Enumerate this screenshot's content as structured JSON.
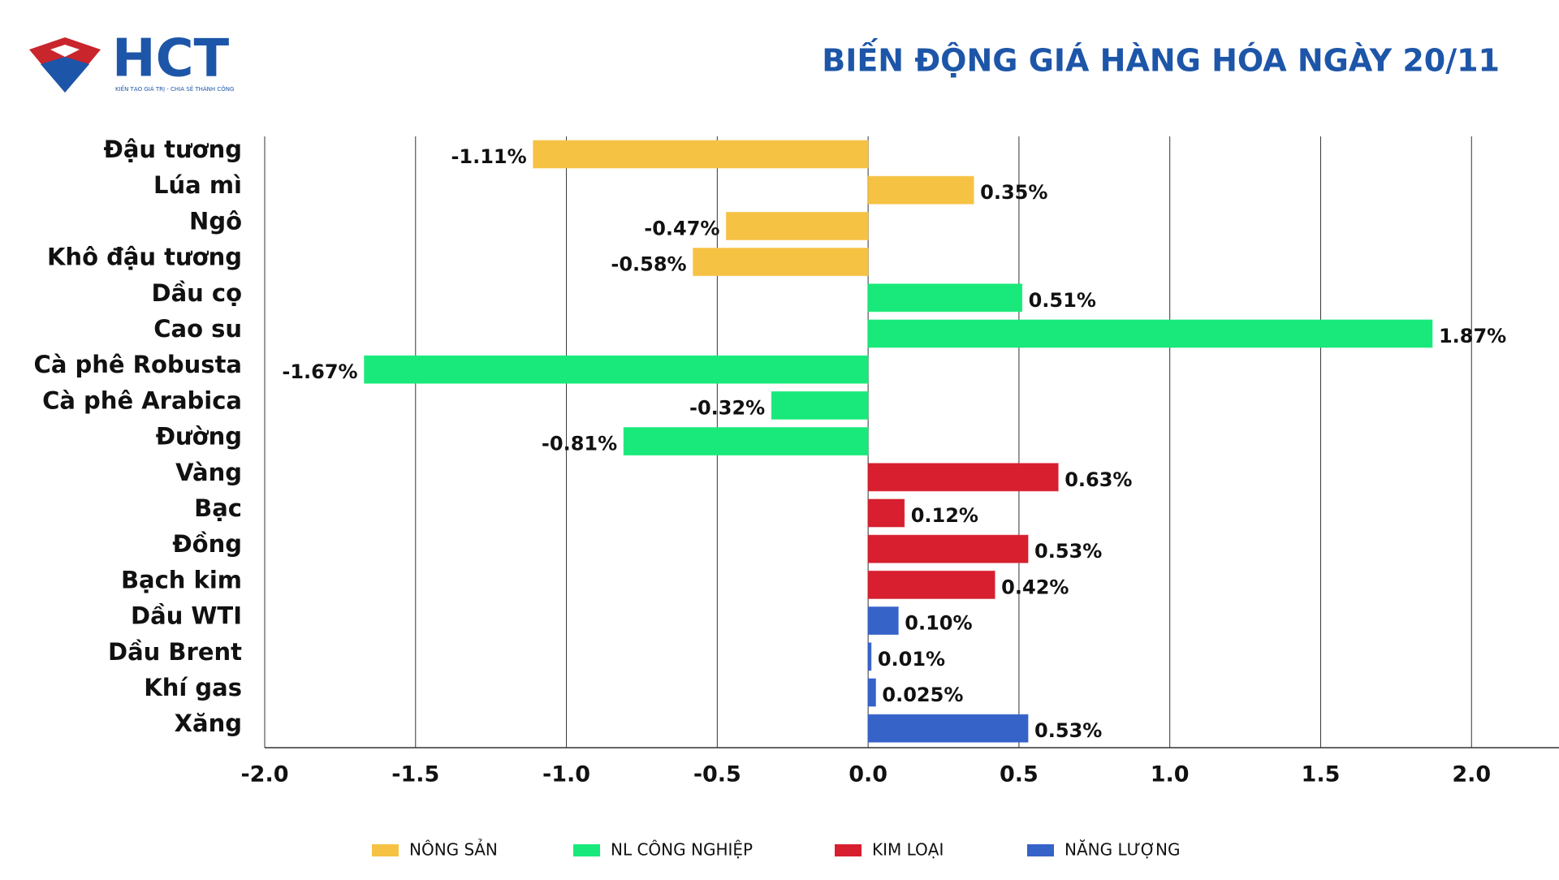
{
  "logo": {
    "text": "HCT",
    "tagline": "KIẾN TẠO GIÁ TRỊ - CHIA SẺ THÀNH CÔNG"
  },
  "chart_data": {
    "type": "bar",
    "orientation": "horizontal",
    "title": "BIẾN ĐỘNG GIÁ HÀNG HÓA NGÀY 20/11",
    "categories": [
      "Đậu tương",
      "Lúa mì",
      "Ngô",
      "Khô đậu tương",
      "Dầu cọ",
      "Cao su",
      "Cà phê Robusta",
      "Cà phê Arabica",
      "Đường",
      "Vàng",
      "Bạc",
      "Đồng",
      "Bạch kim",
      "Dầu WTI",
      "Dầu Brent",
      "Khí gas",
      "Xăng"
    ],
    "series": [
      {
        "name": "NÔNG SẢN",
        "color": "#f6c244",
        "values": [
          -1.11,
          0.35,
          -0.47,
          -0.58,
          null,
          null,
          null,
          null,
          null,
          null,
          null,
          null,
          null,
          null,
          null,
          null,
          null
        ],
        "value_labels": [
          "-1.11%",
          "0.35%",
          "-0.47%",
          "-0.58%",
          null,
          null,
          null,
          null,
          null,
          null,
          null,
          null,
          null,
          null,
          null,
          null,
          null
        ]
      },
      {
        "name": "NL CÔNG NGHIỆP",
        "color": "#18e97a",
        "values": [
          null,
          null,
          null,
          null,
          0.51,
          1.87,
          -1.67,
          -0.32,
          -0.81,
          null,
          null,
          null,
          null,
          null,
          null,
          null,
          null
        ],
        "value_labels": [
          null,
          null,
          null,
          null,
          "0.51%",
          "1.87%",
          "-1.67%",
          "-0.32%",
          "-0.81%",
          null,
          null,
          null,
          null,
          null,
          null,
          null,
          null
        ]
      },
      {
        "name": "KIM LOẠI",
        "color": "#d71f2f",
        "values": [
          null,
          null,
          null,
          null,
          null,
          null,
          null,
          null,
          null,
          0.63,
          0.12,
          0.53,
          0.42,
          null,
          null,
          null,
          null
        ],
        "value_labels": [
          null,
          null,
          null,
          null,
          null,
          null,
          null,
          null,
          null,
          "0.63%",
          "0.12%",
          "0.53%",
          "0.42%",
          null,
          null,
          null,
          null
        ]
      },
      {
        "name": "NĂNG LƯỢNG",
        "color": "#3563c8",
        "values": [
          null,
          null,
          null,
          null,
          null,
          null,
          null,
          null,
          null,
          null,
          null,
          null,
          null,
          0.1,
          0.01,
          0.025,
          0.53
        ],
        "value_labels": [
          null,
          null,
          null,
          null,
          null,
          null,
          null,
          null,
          null,
          null,
          null,
          null,
          null,
          "0.10%",
          "0.01%",
          "0.025%",
          "0.53%"
        ]
      }
    ],
    "xlim": [
      -2,
      2.29
    ],
    "xticks": [
      {
        "value": -2,
        "label": "-2.0"
      },
      -1.5,
      {
        "value": -1,
        "label": "-1.0"
      },
      -0.5,
      {
        "value": 0,
        "label": "0.0"
      },
      0.5,
      {
        "value": 1,
        "label": "1.0"
      },
      1.5,
      {
        "value": 2,
        "label": "2.0"
      }
    ],
    "grid": true,
    "legend": "bottom"
  }
}
